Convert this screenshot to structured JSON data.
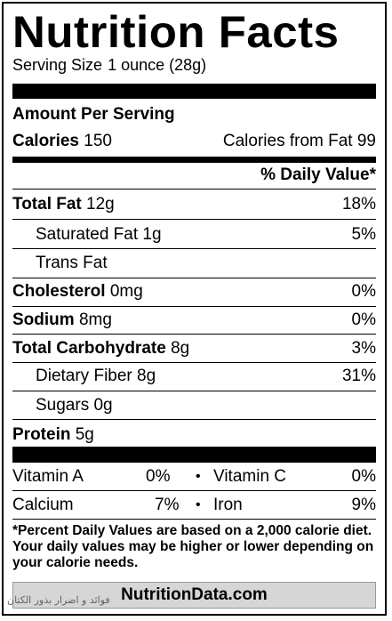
{
  "title": "Nutrition Facts",
  "serving": {
    "label": "Serving Size",
    "value": "1 ounce (28g)"
  },
  "amount_per_serving": "Amount Per Serving",
  "calories": {
    "label": "Calories",
    "value": "150",
    "fat_label": "Calories from Fat",
    "fat_value": "99"
  },
  "daily_value_header": "% Daily Value*",
  "nutrients": [
    {
      "label": "Total Fat",
      "amount": "12g",
      "dv": "18%"
    },
    {
      "label": "Saturated Fat",
      "amount": "1g",
      "dv": "5%"
    },
    {
      "label": "Trans Fat",
      "amount": "",
      "dv": ""
    },
    {
      "label": "Cholesterol",
      "amount": "0mg",
      "dv": "0%"
    },
    {
      "label": "Sodium",
      "amount": "8mg",
      "dv": "0%"
    },
    {
      "label": "Total Carbohydrate",
      "amount": "8g",
      "dv": "3%"
    },
    {
      "label": "Dietary Fiber",
      "amount": "8g",
      "dv": "31%"
    },
    {
      "label": "Sugars",
      "amount": "0g",
      "dv": ""
    },
    {
      "label": "Protein",
      "amount": "5g",
      "dv": ""
    }
  ],
  "vitamins": [
    {
      "left_label": "Vitamin A",
      "left_value": "0%",
      "bullet": "•",
      "right_label": "Vitamin C",
      "right_value": "0%"
    },
    {
      "left_label": "Calcium",
      "left_value": "7%",
      "bullet": "•",
      "right_label": "Iron",
      "right_value": "9%"
    }
  ],
  "footnote": "*Percent Daily Values are based on a 2,000 calorie diet. Your daily values may be higher or lower depending on your calorie needs.",
  "footer_brand": "NutritionData.com",
  "watermark": "فوائد و اضرار بذور الكتان"
}
